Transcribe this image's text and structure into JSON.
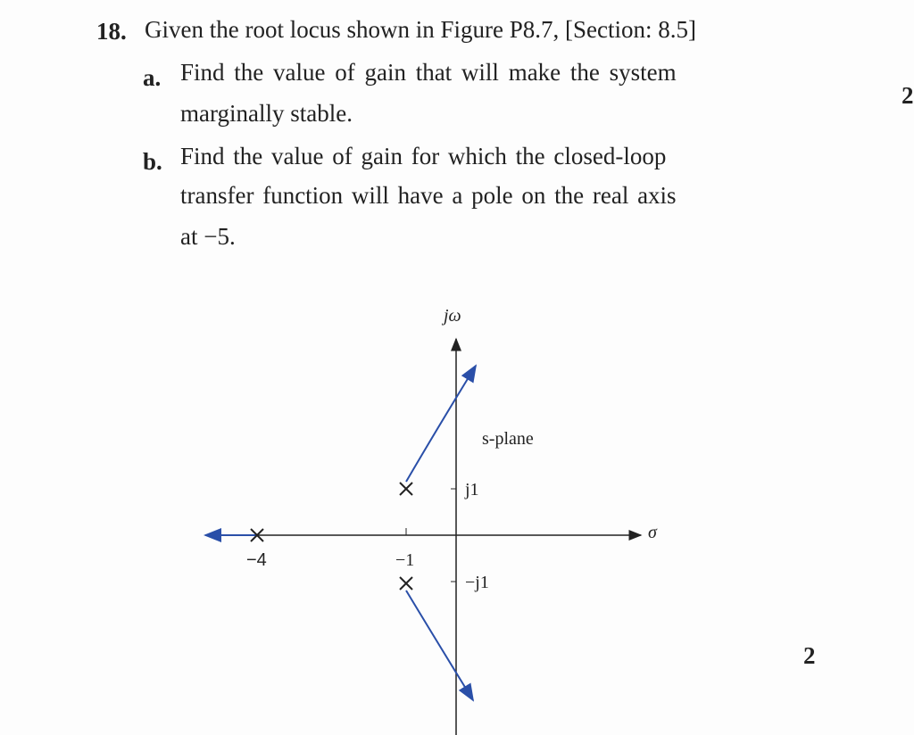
{
  "problem": {
    "number": "18.",
    "text": "Given the root locus shown in Figure P8.7, [Section: 8.5]",
    "parts": [
      {
        "label": "a.",
        "lines": [
          "Find the value of gain that will make the system",
          "marginally stable."
        ]
      },
      {
        "label": "b.",
        "lines": [
          "Find the value of gain for which the closed-loop",
          "transfer function will have a pole on the real axis",
          "at −5."
        ]
      }
    ]
  },
  "figure": {
    "imag_axis_label": "jω",
    "real_axis_label": "σ",
    "plane_label": "s-plane",
    "ticks": [
      "j1",
      "−j1",
      "−4",
      "−1"
    ]
  },
  "margin_marks": [
    "2",
    "2"
  ]
}
